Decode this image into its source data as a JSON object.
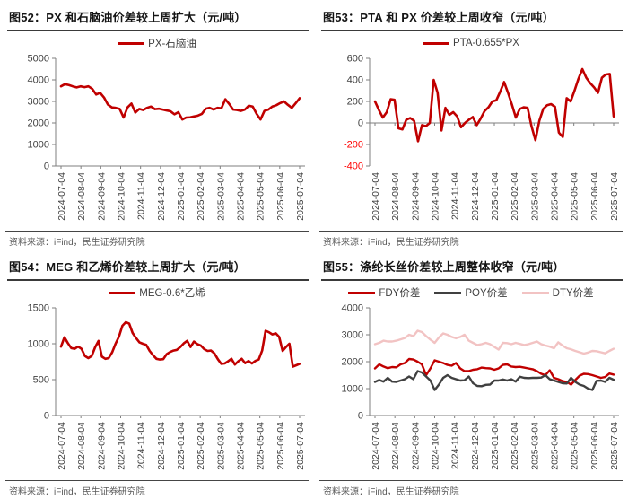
{
  "source_note": "资料来源：iFind，民生证券研究院",
  "panels": [
    {
      "title": "图52：PX 和石脑油价差较上周扩大（元/吨）",
      "source": "资料来源：iFind，民生证券研究院"
    },
    {
      "title": "图53：PTA 和 PX 价差较上周收窄（元/吨）",
      "source": "资料来源：iFind，民生证券研究院"
    },
    {
      "title": "图54：MEG 和乙烯价差较上周扩大（元/吨）",
      "source": "资料来源：iFind，民生证券研究院"
    },
    {
      "title": "图55：涤纶长丝价差较上周整体收窄（元/吨）",
      "source": "资料来源：iFind，民生证券研究院"
    }
  ],
  "colors": {
    "primary_red": "#C00000",
    "dark_gray": "#404040",
    "light_pink": "#F2C3C3",
    "axis_gray": "#7F7F7F",
    "negative_tick_red": "#FF0000"
  },
  "chart_data": [
    {
      "type": "line",
      "title": "图52：PX 和石脑油价差较上周扩大（元/吨）",
      "ylim": [
        0,
        5000
      ],
      "yticks": [
        0,
        1000,
        2000,
        3000,
        4000,
        5000
      ],
      "x_tick_labels": [
        "2024-07-04",
        "2024-08-04",
        "2024-09-04",
        "2024-10-04",
        "2024-11-04",
        "2024-12-04",
        "2025-01-04",
        "2025-02-04",
        "2025-03-04",
        "2025-04-04",
        "2025-05-04",
        "2025-06-04",
        "2025-07-04"
      ],
      "grid": false,
      "legend_position": "top",
      "series": [
        {
          "name": "PX-石脑油",
          "color": "#C00000",
          "values": [
            3700,
            3800,
            3760,
            3700,
            3650,
            3700,
            3660,
            3700,
            3580,
            3320,
            3400,
            3180,
            2850,
            2720,
            2700,
            2650,
            2250,
            2720,
            2900,
            2480,
            2650,
            2600,
            2700,
            2760,
            2640,
            2660,
            2620,
            2580,
            2540,
            2400,
            2500,
            2160,
            2250,
            2260,
            2300,
            2340,
            2420,
            2660,
            2700,
            2620,
            2700,
            2680,
            3100,
            2880,
            2620,
            2600,
            2560,
            2620,
            2800,
            2760,
            2420,
            2160,
            2560,
            2620,
            2760,
            2820,
            2920,
            3000,
            2840,
            2700,
            2920,
            3150
          ]
        }
      ]
    },
    {
      "type": "line",
      "title": "图53：PTA 和 PX 价差较上周收窄（元/吨）",
      "ylim": [
        -400,
        600
      ],
      "yticks": [
        -400,
        -200,
        0,
        200,
        400,
        600
      ],
      "x_tick_labels": [
        "2024-07-04",
        "2024-08-04",
        "2024-09-04",
        "2024-10-04",
        "2024-11-04",
        "2024-12-04",
        "2025-01-04",
        "2025-02-04",
        "2025-03-04",
        "2025-04-04",
        "2025-05-04",
        "2025-06-04",
        "2025-07-04"
      ],
      "grid": false,
      "legend_position": "top",
      "series": [
        {
          "name": "PTA-0.655*PX",
          "color": "#C00000",
          "values": [
            200,
            120,
            50,
            100,
            220,
            215,
            -50,
            -60,
            30,
            45,
            20,
            -170,
            -20,
            -30,
            0,
            400,
            280,
            -70,
            140,
            75,
            100,
            60,
            -40,
            0,
            30,
            55,
            -20,
            40,
            110,
            145,
            200,
            210,
            290,
            380,
            280,
            170,
            50,
            130,
            145,
            140,
            -30,
            -160,
            20,
            130,
            165,
            175,
            150,
            -90,
            -130,
            230,
            200,
            300,
            410,
            500,
            420,
            370,
            330,
            280,
            420,
            450,
            455,
            60
          ]
        }
      ]
    },
    {
      "type": "line",
      "title": "图54：MEG 和乙烯价差较上周扩大（元/吨）",
      "ylim": [
        0,
        1500
      ],
      "yticks": [
        0,
        500,
        1000,
        1500
      ],
      "x_tick_labels": [
        "2024-07-04",
        "2024-08-04",
        "2024-09-04",
        "2024-10-04",
        "2024-11-04",
        "2024-12-04",
        "2025-01-04",
        "2025-02-04",
        "2025-03-04",
        "2025-04-04",
        "2025-05-04",
        "2025-06-04",
        "2025-07-04"
      ],
      "grid": false,
      "legend_position": "top",
      "series": [
        {
          "name": "MEG-0.6*乙烯",
          "color": "#C00000",
          "values": [
            960,
            1090,
            1010,
            940,
            930,
            960,
            930,
            830,
            800,
            830,
            950,
            1040,
            820,
            790,
            800,
            880,
            1000,
            1100,
            1250,
            1300,
            1280,
            1150,
            1080,
            1020,
            1000,
            985,
            900,
            840,
            790,
            780,
            785,
            855,
            885,
            905,
            915,
            955,
            1005,
            1040,
            955,
            1030,
            995,
            975,
            925,
            900,
            905,
            865,
            785,
            720,
            725,
            755,
            790,
            710,
            755,
            790,
            730,
            760,
            725,
            760,
            780,
            905,
            1180,
            1160,
            1130,
            1145,
            1095,
            900,
            955,
            1000,
            680,
            700,
            720
          ]
        }
      ]
    },
    {
      "type": "line",
      "title": "图55：涤纶长丝价差较上周整体收窄（元/吨）",
      "ylim": [
        0,
        4000
      ],
      "yticks": [
        0,
        1000,
        2000,
        3000,
        4000
      ],
      "x_tick_labels": [
        "2024-07-04",
        "2024-08-04",
        "2024-09-04",
        "2024-10-04",
        "2024-11-04",
        "2024-12-04",
        "2025-01-04",
        "2025-02-04",
        "2025-03-04",
        "2025-04-04",
        "2025-05-04",
        "2025-06-04",
        "2025-07-04"
      ],
      "grid": false,
      "legend_position": "top",
      "series": [
        {
          "name": "FDY价差",
          "color": "#C00000",
          "values": [
            1750,
            1900,
            1820,
            1760,
            1800,
            1790,
            1900,
            1950,
            2100,
            2080,
            2000,
            1900,
            1500,
            1750,
            2050,
            2000,
            1950,
            1880,
            1850,
            1950,
            1750,
            1650,
            1650,
            1700,
            1720,
            1780,
            1760,
            1750,
            1700,
            1750,
            1880,
            1900,
            1820,
            1800,
            1810,
            1780,
            1750,
            1720,
            1650,
            1550,
            1500,
            1680,
            1400,
            1350,
            1280,
            1250,
            1150,
            1320,
            1480,
            1550,
            1540,
            1500,
            1450,
            1400,
            1430,
            1560,
            1520
          ]
        },
        {
          "name": "POY价差",
          "color": "#404040",
          "values": [
            1250,
            1320,
            1260,
            1400,
            1260,
            1250,
            1300,
            1350,
            1450,
            1350,
            1650,
            1600,
            1450,
            1300,
            950,
            1150,
            1400,
            1500,
            1400,
            1350,
            1300,
            1310,
            1450,
            1200,
            1100,
            1090,
            1140,
            1150,
            1300,
            1300,
            1340,
            1300,
            1350,
            1260,
            1440,
            1400,
            1390,
            1400,
            1400,
            1410,
            1500,
            1350,
            1300,
            1250,
            1200,
            1190,
            1400,
            1250,
            1150,
            1100,
            1000,
            950,
            1290,
            1300,
            1250,
            1400,
            1330
          ]
        },
        {
          "name": "DTY价差",
          "color": "#F2C3C3",
          "values": [
            2650,
            2700,
            2780,
            2750,
            2750,
            2780,
            2830,
            2880,
            3000,
            2950,
            3150,
            3100,
            2950,
            2820,
            2700,
            2900,
            3050,
            3000,
            2920,
            2870,
            2920,
            3000,
            2780,
            2700,
            2620,
            2650,
            2700,
            2650,
            2550,
            2450,
            2700,
            2690,
            2650,
            2700,
            2660,
            2620,
            2650,
            2700,
            2750,
            2650,
            2600,
            2560,
            2500,
            2720,
            2600,
            2500,
            2460,
            2400,
            2350,
            2300,
            2340,
            2400,
            2390,
            2350,
            2310,
            2400,
            2480
          ]
        }
      ]
    }
  ]
}
